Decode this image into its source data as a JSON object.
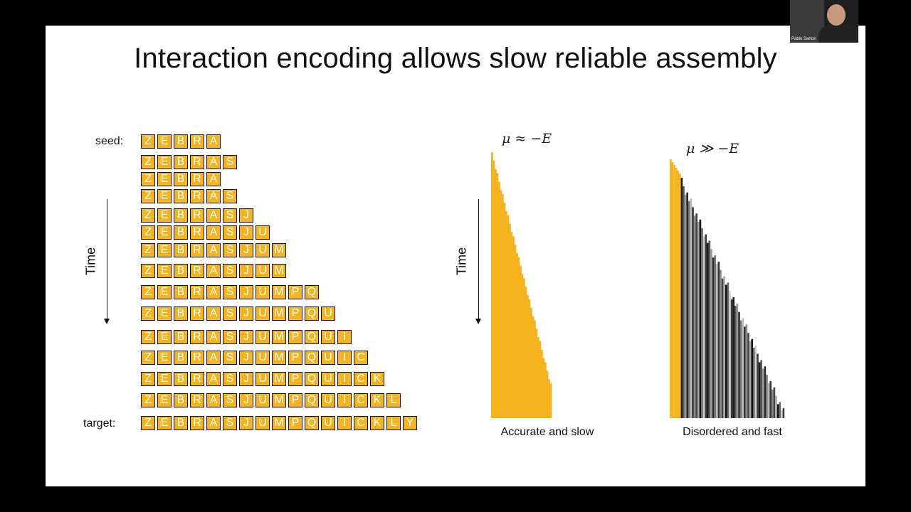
{
  "slide": {
    "title": "Interaction encoding allows slow reliable assembly",
    "seed_label": "seed:",
    "target_label": "target:",
    "time_label": "Time",
    "sequences": [
      "ZEBRA",
      "ZEBRAS",
      "ZEBRA",
      "ZEBRAS",
      "ZEBRASJ",
      "ZEBRASJU",
      "ZEBRASJUM",
      "ZEBRASJUM",
      "ZEBRASJUMPQ",
      "ZEBRASJUMPQU",
      "ZEBRASJUMPQUI",
      "ZEBRASJUMPQUIC",
      "ZEBRASJUMPQUICK",
      "ZEBRASJUMPQUICKL",
      "ZEBRASJUMPQUICKLY"
    ],
    "left_plot": {
      "equation": "μ ≈ −E",
      "caption": "Accurate and slow",
      "color": "#f5b41e"
    },
    "right_plot": {
      "equation": "μ ≫ −E",
      "caption": "Disordered and fast",
      "color": "#f5b41e"
    }
  },
  "webcam": {
    "name": "Pablo Sartori"
  },
  "colors": {
    "tile": "#f5b41e",
    "background": "#ffffff",
    "frame": "#000000"
  }
}
